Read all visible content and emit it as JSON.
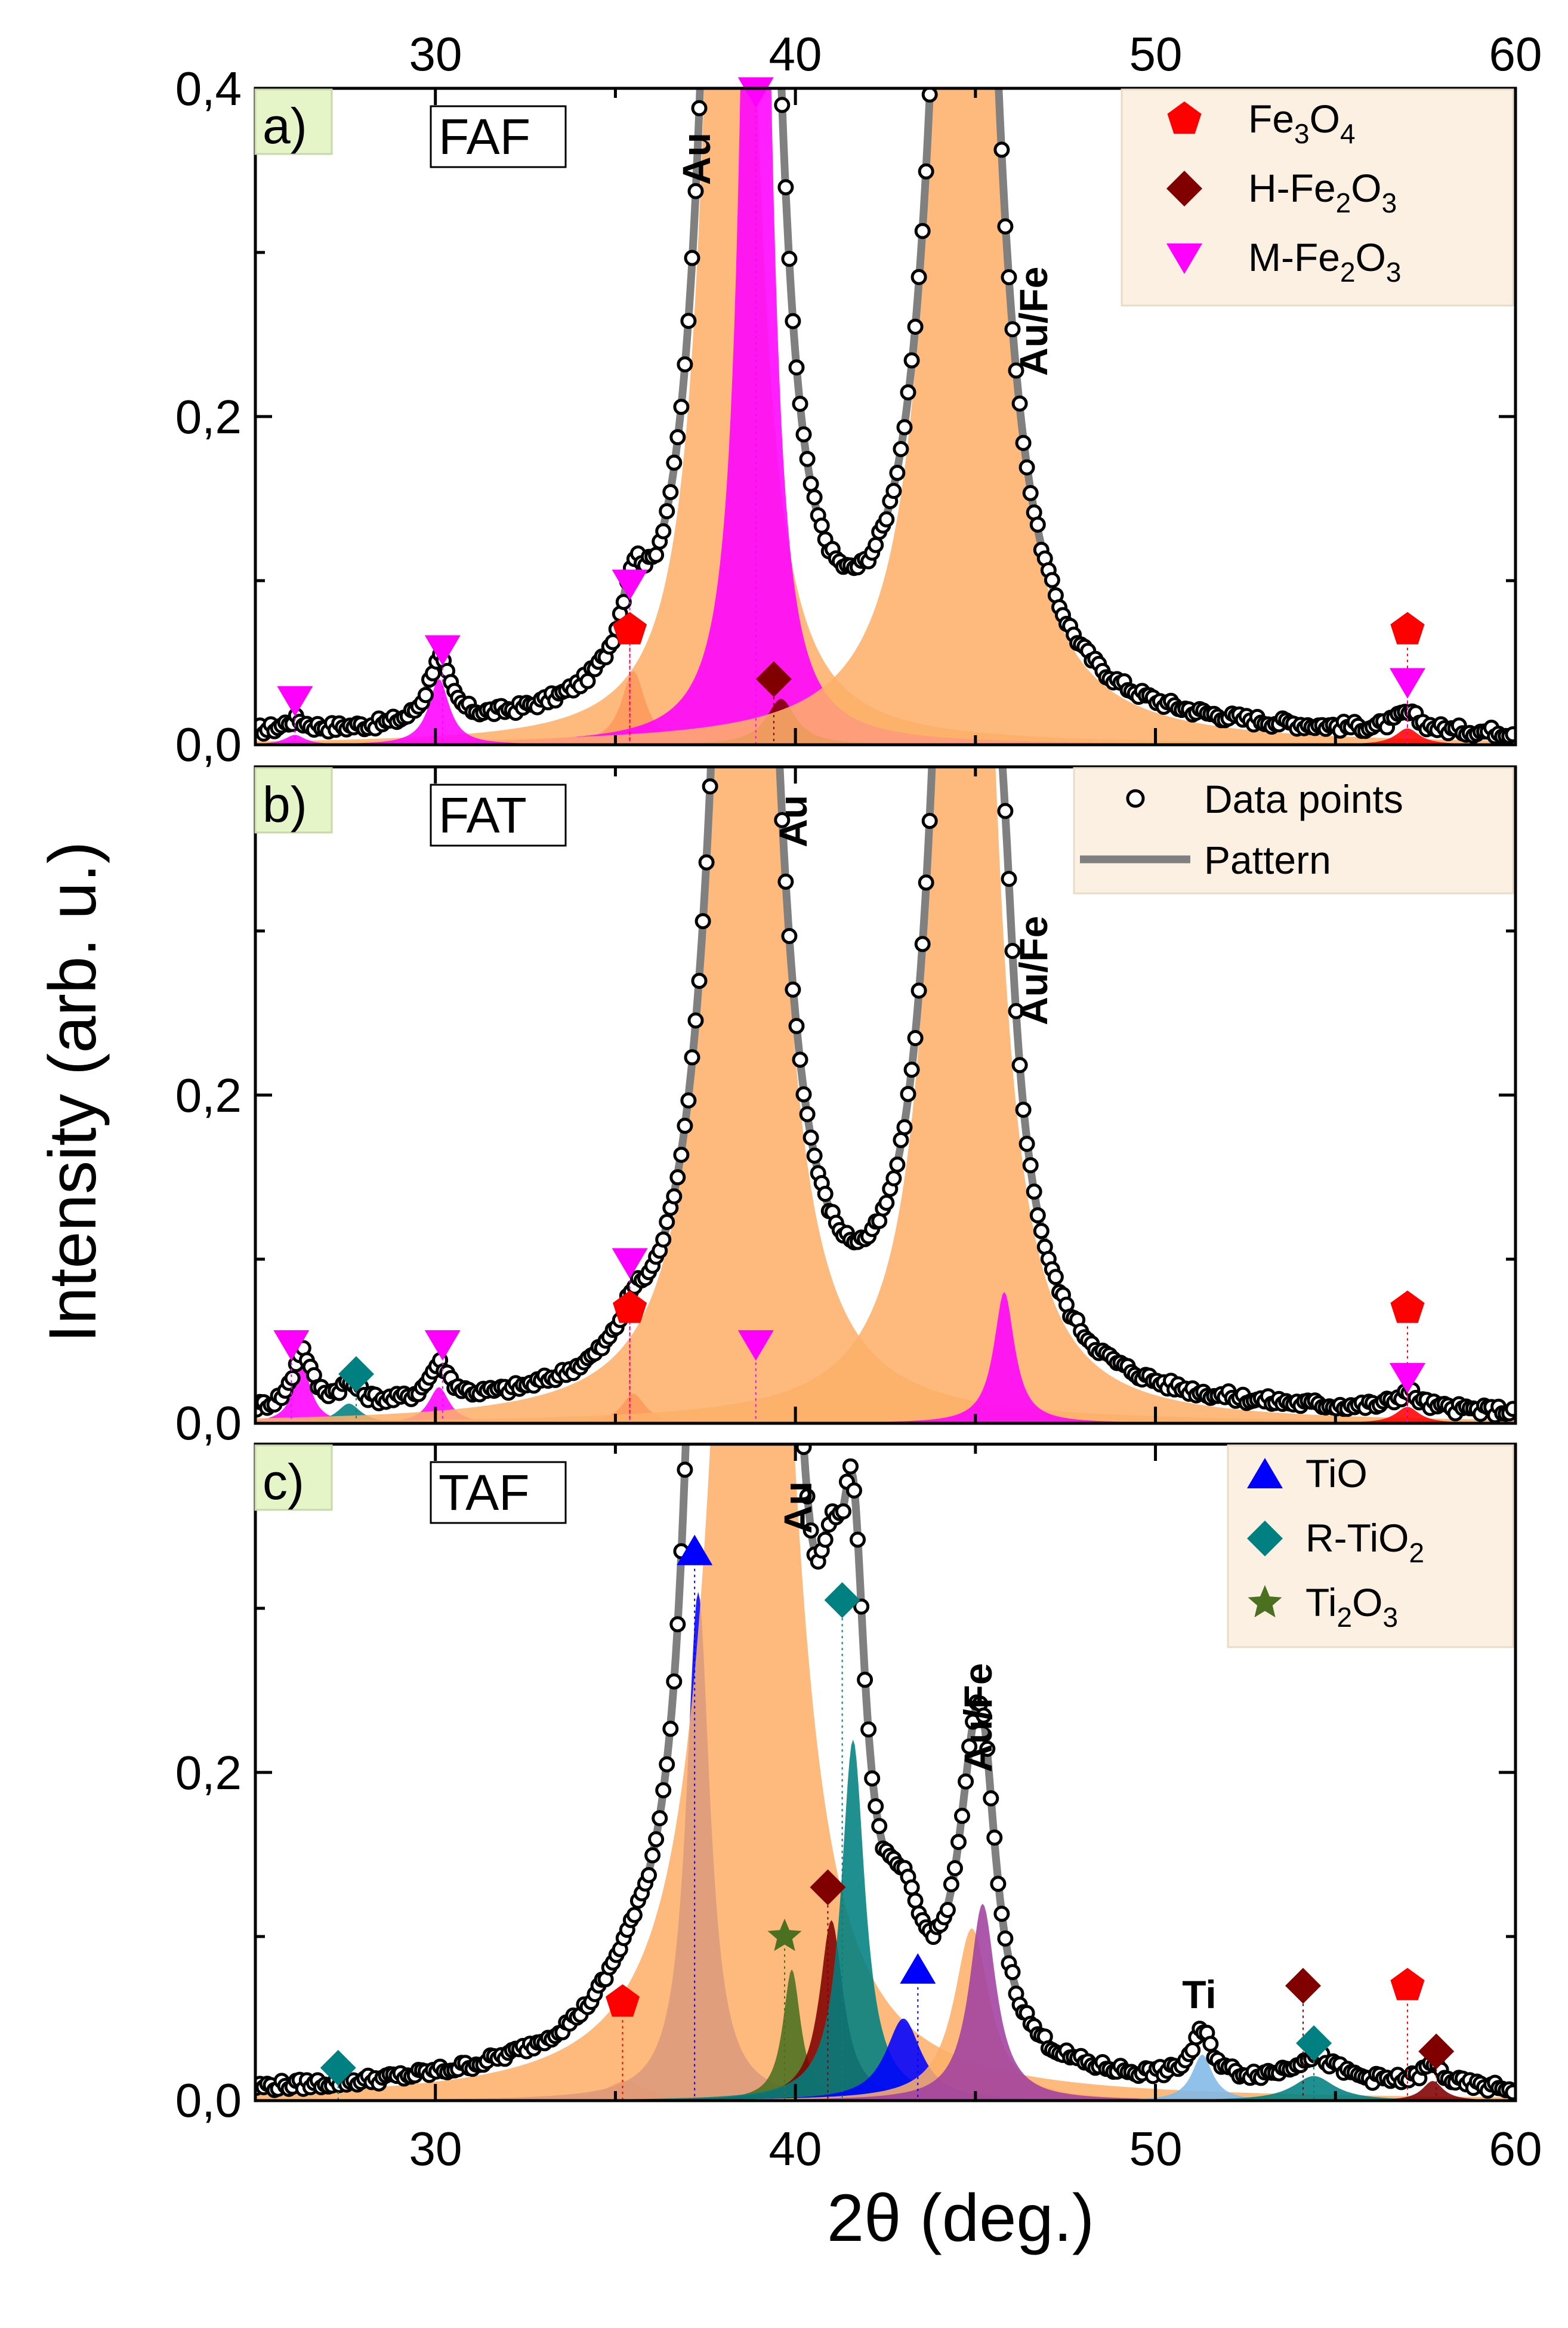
{
  "chart_data": {
    "type": "line",
    "title": "",
    "xlabel": "2θ (deg.)",
    "ylabel": "Intensity (arb. u.)",
    "xlim": [
      25,
      60
    ],
    "ylim": [
      0,
      0.4
    ],
    "x_ticks": [
      "30",
      "40",
      "50",
      "60"
    ],
    "top_x_ticks": [
      "30",
      "40",
      "50",
      "60"
    ],
    "y_ticks": [
      "0,0",
      "0,2",
      "0,4"
    ],
    "legend_general": [
      {
        "label": "Data points",
        "marker": "open-circle"
      },
      {
        "label": "Pattern",
        "marker": "gray-line"
      }
    ],
    "panels": [
      {
        "label": "a)",
        "sample": "FAF",
        "annotations": [
          {
            "text": "Au",
            "x": 38.6
          },
          {
            "text": "Au/Fe",
            "x": 46.7
          }
        ],
        "legend": [
          {
            "main": "Fe",
            "sub1": "3",
            "mid": "O",
            "sub2": "4",
            "marker": "pentagon",
            "color": "#ff0000"
          },
          {
            "main": "H-Fe",
            "sub1": "2",
            "mid": "O",
            "sub2": "3",
            "marker": "diamond",
            "color": "#800000"
          },
          {
            "main": "M-Fe",
            "sub1": "2",
            "mid": "O",
            "sub2": "3",
            "marker": "triangle-down",
            "color": "#ff00ff"
          }
        ],
        "peaks": [
          {
            "phase": "Fe3O4",
            "x": 35.5,
            "height": 0.045,
            "width": 0.4,
            "color": "#ff0000"
          },
          {
            "phase": "Au",
            "x": 38.2,
            "height": 1.0,
            "width": 0.6,
            "color": "#fdb06a"
          },
          {
            "phase": "M-Fe2O3",
            "x": 38.9,
            "height": 1.0,
            "width": 0.35,
            "color": "#ff00ff"
          },
          {
            "phase": "H-Fe2O3",
            "x": 39.6,
            "height": 0.028,
            "width": 0.5,
            "color": "#800000"
          },
          {
            "phase": "Au/Fe",
            "x": 44.7,
            "height": 1.0,
            "width": 0.75,
            "color": "#fdb06a"
          },
          {
            "phase": "M-Fe2O3",
            "x": 26.1,
            "height": 0.006,
            "width": 0.35,
            "color": "#ff00ff"
          },
          {
            "phase": "M-Fe2O3",
            "x": 30.1,
            "height": 0.04,
            "width": 0.35,
            "color": "#ff00ff"
          },
          {
            "phase": "Fe3O4",
            "x": 57.0,
            "height": 0.01,
            "width": 0.4,
            "color": "#ff0000"
          }
        ],
        "markers": [
          {
            "phase": "M-Fe2O3",
            "x": 26.1,
            "y": 0.027
          },
          {
            "phase": "M-Fe2O3",
            "x": 30.2,
            "y": 0.058
          },
          {
            "phase": "M-Fe2O3",
            "x": 35.4,
            "y": 0.098
          },
          {
            "phase": "Fe3O4",
            "x": 35.4,
            "y": 0.07
          },
          {
            "phase": "H-Fe2O3",
            "x": 39.4,
            "y": 0.04
          },
          {
            "phase": "Fe3O4",
            "x": 57.0,
            "y": 0.07
          },
          {
            "phase": "M-Fe2O3",
            "x": 57.0,
            "y": 0.038
          },
          {
            "phase": "M-Fe2O3",
            "x": 38.9,
            "y": 0.398
          }
        ]
      },
      {
        "label": "b)",
        "sample": "FAT",
        "annotations": [
          {
            "text": "Au",
            "x": 40.0
          },
          {
            "text": "Au/Fe",
            "x": 46.7
          }
        ],
        "peaks": [
          {
            "phase": "M-Fe2O3",
            "x": 26.3,
            "height": 0.035,
            "width": 0.3,
            "color": "#ff00ff"
          },
          {
            "phase": "R-TiO2",
            "x": 27.6,
            "height": 0.012,
            "width": 0.4,
            "color": "#008080"
          },
          {
            "phase": "M-Fe2O3",
            "x": 30.1,
            "height": 0.022,
            "width": 0.35,
            "color": "#ff00ff"
          },
          {
            "phase": "Fe3O4",
            "x": 35.5,
            "height": 0.018,
            "width": 0.4,
            "color": "#ff0000"
          },
          {
            "phase": "Au",
            "x": 38.6,
            "height": 1.0,
            "width": 0.75,
            "color": "#fdb06a"
          },
          {
            "phase": "Au/Fe",
            "x": 44.7,
            "height": 1.0,
            "width": 0.7,
            "color": "#fdb06a"
          },
          {
            "phase": "M-Fe2O3",
            "x": 45.8,
            "height": 0.08,
            "width": 0.35,
            "color": "#ff00ff"
          },
          {
            "phase": "Fe3O4",
            "x": 57.0,
            "height": 0.01,
            "width": 0.4,
            "color": "#ff0000"
          }
        ],
        "markers": [
          {
            "phase": "M-Fe2O3",
            "x": 26.0,
            "y": 0.048
          },
          {
            "phase": "R-TiO2",
            "x": 27.8,
            "y": 0.03
          },
          {
            "phase": "M-Fe2O3",
            "x": 30.2,
            "y": 0.048
          },
          {
            "phase": "M-Fe2O3",
            "x": 35.4,
            "y": 0.098
          },
          {
            "phase": "Fe3O4",
            "x": 35.4,
            "y": 0.07
          },
          {
            "phase": "M-Fe2O3",
            "x": 38.9,
            "y": 0.048
          },
          {
            "phase": "Fe3O4",
            "x": 57.0,
            "y": 0.07
          },
          {
            "phase": "M-Fe2O3",
            "x": 57.0,
            "y": 0.028
          }
        ]
      },
      {
        "label": "c)",
        "sample": "TAF",
        "annotations": [
          {
            "text": "Au",
            "x": 40.0
          },
          {
            "text": "Au/Fe",
            "x": 45.3
          },
          {
            "text": "Ti",
            "x": 51.3
          }
        ],
        "legend": [
          {
            "main": "TiO",
            "sub1": "",
            "mid": "",
            "sub2": "",
            "marker": "triangle-up",
            "color": "#0000ff"
          },
          {
            "main": "R-TiO",
            "sub1": "2",
            "mid": "",
            "sub2": "",
            "marker": "diamond",
            "color": "#008080"
          },
          {
            "main": "Ti",
            "sub1": "2",
            "mid": "O",
            "sub2": "3",
            "marker": "star",
            "color": "#4a7020"
          }
        ],
        "peaks": [
          {
            "phase": "Fe3O4",
            "x": 35.3,
            "height": 0.012,
            "width": 0.7,
            "color": "#ff0000"
          },
          {
            "phase": "TiO",
            "x": 37.3,
            "height": 0.31,
            "width": 0.4,
            "color": "#0000ff"
          },
          {
            "phase": "Au",
            "x": 38.8,
            "height": 1.0,
            "width": 0.95,
            "color": "#fdb06a"
          },
          {
            "phase": "Ti2O3",
            "x": 39.9,
            "height": 0.08,
            "width": 0.3,
            "color": "#4a7020"
          },
          {
            "phase": "H-Fe2O3",
            "x": 41.0,
            "height": 0.11,
            "width": 0.4,
            "color": "#800000"
          },
          {
            "phase": "R-TiO2",
            "x": 41.6,
            "height": 0.22,
            "width": 0.4,
            "color": "#008080"
          },
          {
            "phase": "TiO",
            "x": 43.0,
            "height": 0.05,
            "width": 0.6,
            "color": "#0000ff"
          },
          {
            "phase": "Au/Fe",
            "x": 44.9,
            "height": 0.105,
            "width": 0.6,
            "color": "#fdb06a"
          },
          {
            "phase": "H-Fe2O3",
            "x": 45.2,
            "height": 0.12,
            "width": 0.45,
            "color": "#a040a0"
          },
          {
            "phase": "Ti",
            "x": 51.3,
            "height": 0.028,
            "width": 0.35,
            "color": "#7fb8e8"
          },
          {
            "phase": "R-TiO2",
            "x": 54.4,
            "height": 0.015,
            "width": 0.7,
            "color": "#008080"
          },
          {
            "phase": "H-Fe2O3",
            "x": 57.7,
            "height": 0.012,
            "width": 0.35,
            "color": "#800000"
          }
        ],
        "markers": [
          {
            "phase": "R-TiO2",
            "x": 27.3,
            "y": 0.02
          },
          {
            "phase": "Fe3O4",
            "x": 35.2,
            "y": 0.06
          },
          {
            "phase": "TiO",
            "x": 37.2,
            "y": 0.335
          },
          {
            "phase": "R-TiO2",
            "x": 41.3,
            "y": 0.305
          },
          {
            "phase": "H-Fe2O3",
            "x": 40.9,
            "y": 0.13
          },
          {
            "phase": "Ti2O3",
            "x": 39.7,
            "y": 0.1
          },
          {
            "phase": "TiO",
            "x": 43.4,
            "y": 0.08
          },
          {
            "phase": "H-Fe2O3",
            "x": 54.1,
            "y": 0.07
          },
          {
            "phase": "R-TiO2",
            "x": 54.4,
            "y": 0.035
          },
          {
            "phase": "Fe3O4",
            "x": 57.0,
            "y": 0.07
          },
          {
            "phase": "H-Fe2O3",
            "x": 57.8,
            "y": 0.03
          }
        ]
      }
    ]
  }
}
